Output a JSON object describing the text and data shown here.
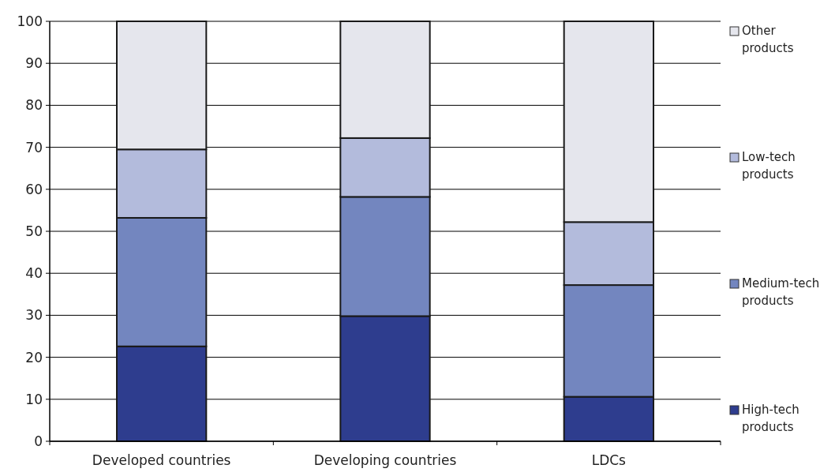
{
  "chart_data": {
    "type": "bar",
    "stacked": true,
    "categories": [
      "Developed countries",
      "Developing countries",
      "LDCs"
    ],
    "series": [
      {
        "name": "High-tech products",
        "color": "#2e3d8e",
        "values": [
          22.6,
          29.8,
          10.6
        ]
      },
      {
        "name": "Medium-tech products",
        "color": "#7386bf",
        "values": [
          30.6,
          28.4,
          26.6
        ]
      },
      {
        "name": "Low-tech products",
        "color": "#b3bbdc",
        "values": [
          16.3,
          14.0,
          15.0
        ]
      },
      {
        "name": "Other products",
        "color": "#e5e6ed",
        "values": [
          30.5,
          27.8,
          47.8
        ]
      }
    ],
    "ylim": [
      0,
      100
    ],
    "yticks": [
      0,
      10,
      20,
      30,
      40,
      50,
      60,
      70,
      80,
      90,
      100
    ],
    "grid": "y",
    "legend": "right"
  }
}
